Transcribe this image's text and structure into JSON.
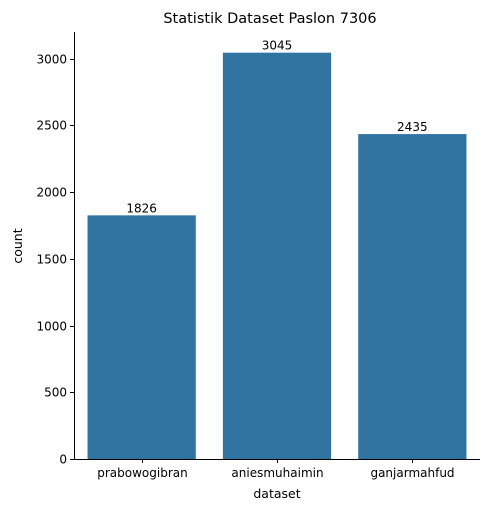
{
  "chart_data": {
    "type": "bar",
    "title": "Statistik Dataset Paslon 7306",
    "xlabel": "dataset",
    "ylabel": "count",
    "categories": [
      "prabowogibran",
      "aniesmuhaimin",
      "ganjarmahfud"
    ],
    "values": [
      1826,
      3045,
      2435
    ],
    "data_labels": [
      "1826",
      "3045",
      "2435"
    ],
    "ylim": [
      0,
      3200
    ],
    "yticks": [
      0,
      500,
      1000,
      1500,
      2000,
      2500,
      3000
    ],
    "ytick_labels": [
      "0",
      "500",
      "1000",
      "1500",
      "2000",
      "2500",
      "3000"
    ],
    "bar_color": "#3274a1",
    "grid": false,
    "legend": "none"
  }
}
